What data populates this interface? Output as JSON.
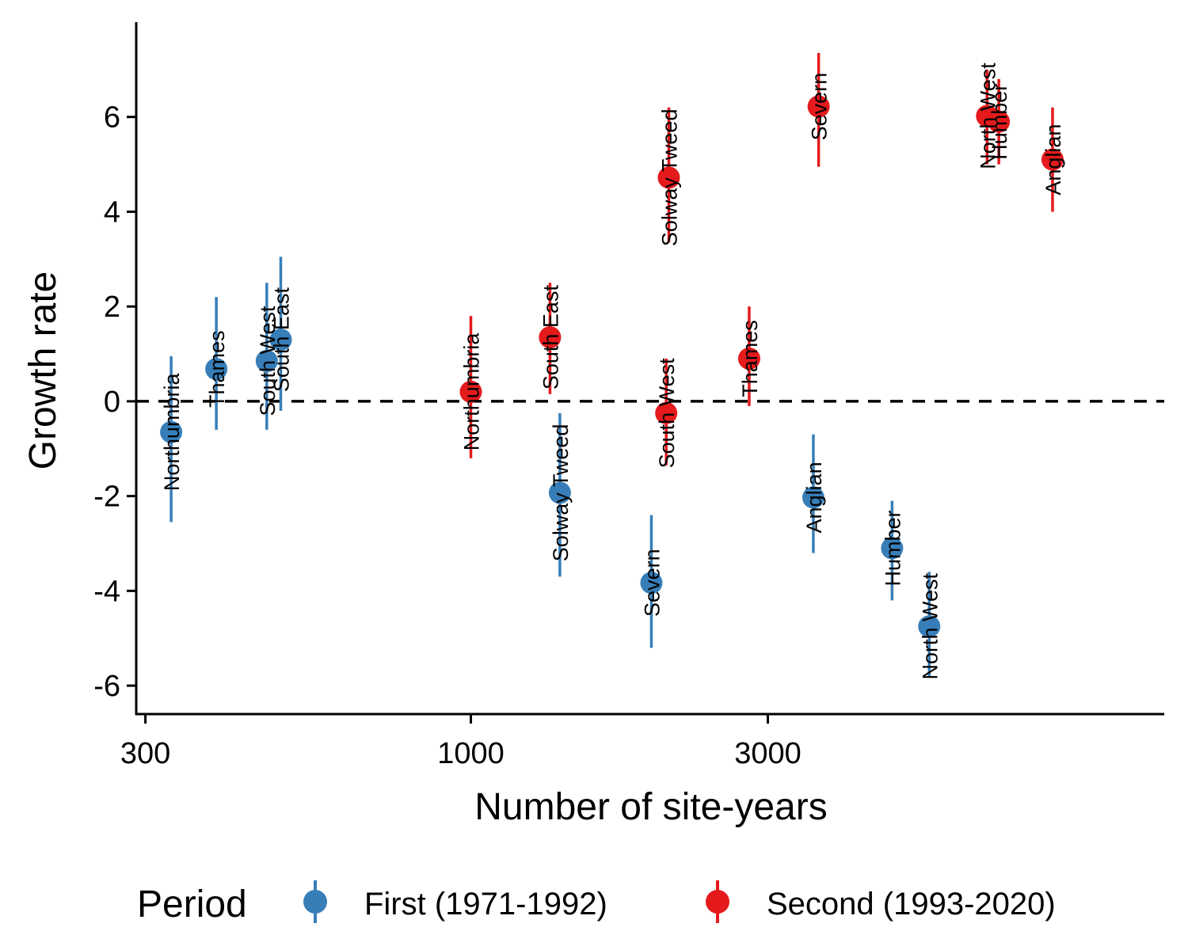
{
  "chart_data": {
    "type": "scatter",
    "xlabel": "Number of site-years",
    "ylabel": "Growth rate",
    "x_scale": "log10",
    "xlim": [
      290,
      13000
    ],
    "ylim": [
      -6.6,
      8.0
    ],
    "x_ticks": [
      300,
      1000,
      3000
    ],
    "x_tick_labels": [
      "300",
      "1000",
      "3000"
    ],
    "y_ticks": [
      -6,
      -4,
      -2,
      0,
      2,
      4,
      6
    ],
    "y_tick_labels": [
      "-6",
      "-4",
      "-2",
      "0",
      "2",
      "4",
      "6"
    ],
    "reference_line": {
      "y": 0,
      "style": "dashed"
    },
    "grid": false,
    "legend": {
      "title": "Period",
      "position": "bottom",
      "entries": [
        {
          "label": "First (1971-1992)",
          "color": "#377EB8"
        },
        {
          "label": "Second (1993-2020)",
          "color": "#E41A1C"
        }
      ]
    },
    "series": [
      {
        "name": "First (1971-1992)",
        "color": "#377EB8",
        "points": [
          {
            "label": "Northumbria",
            "x": 330,
            "y": -0.65,
            "ymin": -2.55,
            "ymax": 0.95
          },
          {
            "label": "Thames",
            "x": 390,
            "y": 0.68,
            "ymin": -0.6,
            "ymax": 2.2
          },
          {
            "label": "South West",
            "x": 470,
            "y": 0.85,
            "ymin": -0.6,
            "ymax": 2.5
          },
          {
            "label": "South East",
            "x": 495,
            "y": 1.3,
            "ymin": -0.2,
            "ymax": 3.05
          },
          {
            "label": "Solway Tweed",
            "x": 1390,
            "y": -1.93,
            "ymin": -3.7,
            "ymax": -0.25
          },
          {
            "label": "Severn",
            "x": 1950,
            "y": -3.83,
            "ymin": -5.2,
            "ymax": -2.4
          },
          {
            "label": "Anglian",
            "x": 3550,
            "y": -2.03,
            "ymin": -3.2,
            "ymax": -0.7
          },
          {
            "label": "Humber",
            "x": 4750,
            "y": -3.1,
            "ymin": -4.2,
            "ymax": -2.1
          },
          {
            "label": "North West",
            "x": 5450,
            "y": -4.75,
            "ymin": -5.8,
            "ymax": -3.6
          }
        ]
      },
      {
        "name": "Second (1993-2020)",
        "color": "#E41A1C",
        "points": [
          {
            "label": "Northumbria",
            "x": 1000,
            "y": 0.2,
            "ymin": -1.2,
            "ymax": 1.8
          },
          {
            "label": "South East",
            "x": 1340,
            "y": 1.35,
            "ymin": 0.15,
            "ymax": 2.5
          },
          {
            "label": "South West",
            "x": 2060,
            "y": -0.25,
            "ymin": -1.35,
            "ymax": 0.9
          },
          {
            "label": "Solway Tweed",
            "x": 2080,
            "y": 4.72,
            "ymin": 3.35,
            "ymax": 6.2
          },
          {
            "label": "Thames",
            "x": 2800,
            "y": 0.9,
            "ymin": -0.1,
            "ymax": 2.0
          },
          {
            "label": "Severn",
            "x": 3620,
            "y": 6.22,
            "ymin": 4.95,
            "ymax": 7.35
          },
          {
            "label": "North West",
            "x": 6750,
            "y": 6.02,
            "ymin": 5.0,
            "ymax": 7.0
          },
          {
            "label": "Humber",
            "x": 7050,
            "y": 5.9,
            "ymin": 5.0,
            "ymax": 6.8
          },
          {
            "label": "Anglian",
            "x": 8600,
            "y": 5.1,
            "ymin": 4.0,
            "ymax": 6.2
          }
        ]
      }
    ]
  }
}
